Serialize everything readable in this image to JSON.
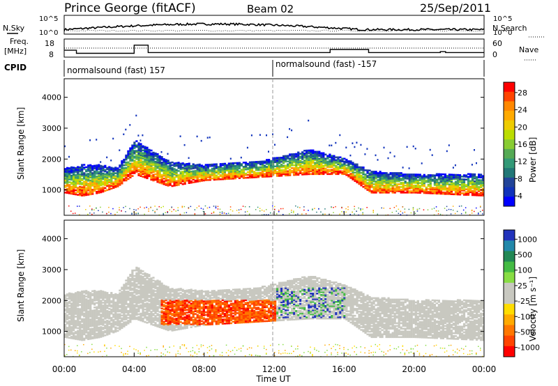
{
  "header": {
    "station": "Prince George (fitACF)",
    "beam": "Beam 02",
    "date": "25/Sep/2011"
  },
  "labels": {
    "nsky": "N.Sky",
    "nsearch": "N.Search",
    "freq_line1": "Freq.",
    "freq_line2": "[MHz]",
    "nave": "Nave",
    "cpid": "CPID",
    "cpid_first": "normalsound (fast) 157",
    "cpid_second": "normalsound (fast) -157",
    "xlabel": "Time UT",
    "ylabel": "Slant Range [km]",
    "power_label": "Power [dB]",
    "velocity_label": "Velocity [m s⁻¹]"
  },
  "noise_ticks": [
    "10^5",
    "10^0"
  ],
  "freq_ticks": [
    "18",
    "8"
  ],
  "nave_ticks": [
    "60",
    "0"
  ],
  "x_ticks": [
    "00:00",
    "04:00",
    "08:00",
    "12:00",
    "16:00",
    "20:00",
    "00:00"
  ],
  "y_ticks": [
    "4000",
    "3000",
    "2000",
    "1000"
  ],
  "power_scale": {
    "ticks": [
      "28",
      "24",
      "20",
      "16",
      "12",
      "8",
      "4"
    ],
    "colors": [
      "#ff0000",
      "#ff4400",
      "#ff8800",
      "#ffaa00",
      "#eecc00",
      "#bbdd00",
      "#88cc33",
      "#55aa55",
      "#339977",
      "#227777",
      "#224499",
      "#1133bb",
      "#0000ff"
    ]
  },
  "velocity_scale": {
    "ticks": [
      "1000",
      "500",
      "100",
      "25",
      "-25",
      "-100",
      "-500",
      "-1000"
    ],
    "colors": [
      "#2233bb",
      "#2288aa",
      "#228855",
      "#44bb44",
      "#88dd44",
      "#c8c8c0",
      "#c8c8c0",
      "#ffdd00",
      "#ffaa00",
      "#ff7700",
      "#ff4400",
      "#ff0000"
    ]
  },
  "chart_data": {
    "type": "heatmap",
    "x_range_hours": [
      0,
      24
    ],
    "y_range_km": [
      180,
      4600
    ],
    "cpid_change_hour": 11.95,
    "frequency_mhz_steps": [
      {
        "t": 0.0,
        "v": 12.5
      },
      {
        "t": 0.7,
        "v": 10.5
      },
      {
        "t": 4.0,
        "v": 15.8
      },
      {
        "t": 4.8,
        "v": 11.0
      },
      {
        "t": 15.2,
        "v": 13.0
      },
      {
        "t": 17.4,
        "v": 11.0
      },
      {
        "t": 21.5,
        "v": 11.6
      },
      {
        "t": 21.8,
        "v": 11.0
      }
    ],
    "power_band_km": [
      {
        "t": 0,
        "lo": 900,
        "hi": 1700
      },
      {
        "t": 1,
        "lo": 800,
        "hi": 1800
      },
      {
        "t": 2,
        "lo": 900,
        "hi": 1800
      },
      {
        "t": 3,
        "lo": 1100,
        "hi": 1700
      },
      {
        "t": 4,
        "lo": 1500,
        "hi": 2600
      },
      {
        "t": 6,
        "lo": 1100,
        "hi": 1900
      },
      {
        "t": 8,
        "lo": 1300,
        "hi": 1800
      },
      {
        "t": 11,
        "lo": 1400,
        "hi": 1900
      },
      {
        "t": 14,
        "lo": 1500,
        "hi": 2300
      },
      {
        "t": 16,
        "lo": 1500,
        "hi": 2000
      },
      {
        "t": 17.5,
        "lo": 900,
        "hi": 1600
      },
      {
        "t": 20,
        "lo": 900,
        "hi": 1500
      },
      {
        "t": 24,
        "lo": 800,
        "hi": 1500
      }
    ],
    "velocity_negative_region": {
      "t_start": 5.5,
      "t_end": 12.0,
      "lo_km": 1200,
      "hi_km": 2000
    }
  }
}
